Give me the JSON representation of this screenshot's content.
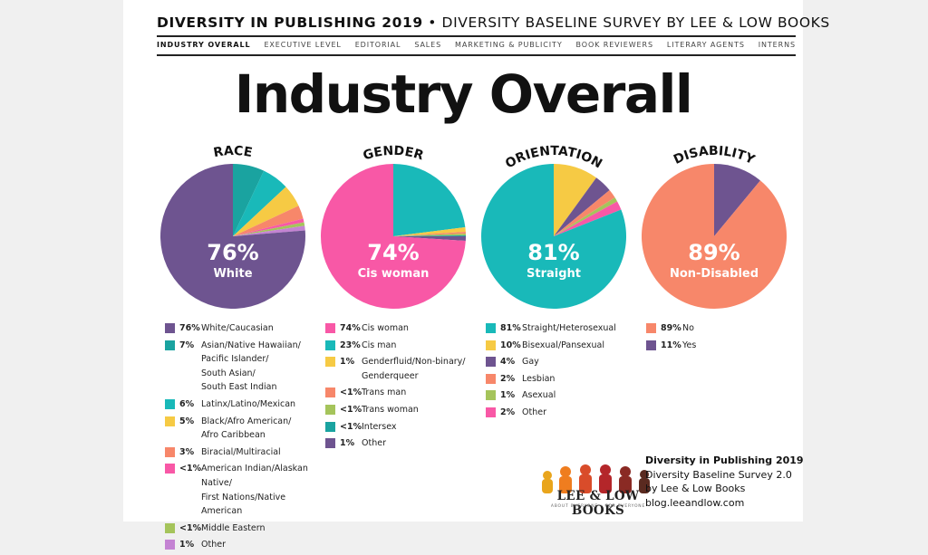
{
  "header": {
    "title_bold": "DIVERSITY IN PUBLISHING 2019",
    "title_rest": " • DIVERSITY BASELINE SURVEY BY LEE & LOW BOOKS"
  },
  "nav": {
    "items": [
      "INDUSTRY OVERALL",
      "EXECUTIVE LEVEL",
      "EDITORIAL",
      "SALES",
      "MARKETING & PUBLICITY",
      "BOOK REVIEWERS",
      "LITERARY AGENTS",
      "INTERNS"
    ],
    "active": 0
  },
  "page_title": "Industry Overall",
  "colors": {
    "purple": "#6e5490",
    "teal_dark": "#1aa3a0",
    "teal": "#19b9b9",
    "yellow": "#f6ca44",
    "salmon": "#f7876a",
    "pink": "#f858a6",
    "green": "#a5c45b",
    "lilac": "#c483d3",
    "cyan": "#1fb3c4"
  },
  "chart_data": [
    {
      "type": "pie",
      "title": "RACE",
      "center_pct": "76%",
      "center_label": "White",
      "slices": [
        {
          "label": "White/Caucasian",
          "value": 76,
          "pct": "76%",
          "color": "#6e5490"
        },
        {
          "label": "Asian/Native Hawaiian/\nPacific Islander/\nSouth Asian/\nSouth East Indian",
          "value": 7,
          "pct": "7%",
          "color": "#1aa3a0"
        },
        {
          "label": "Latinx/Latino/Mexican",
          "value": 6,
          "pct": "6%",
          "color": "#19b9b9"
        },
        {
          "label": "Black/Afro American/\nAfro Caribbean",
          "value": 5,
          "pct": "5%",
          "color": "#f6ca44"
        },
        {
          "label": "Biracial/Multiracial",
          "value": 3,
          "pct": "3%",
          "color": "#f7876a"
        },
        {
          "label": "American Indian/Alaskan Native/\nFirst Nations/Native American",
          "value": 0.8,
          "pct": "<1%",
          "color": "#f858a6"
        },
        {
          "label": "Middle Eastern",
          "value": 0.8,
          "pct": "<1%",
          "color": "#a5c45b"
        },
        {
          "label": "Other",
          "value": 1,
          "pct": "1%",
          "color": "#c483d3"
        }
      ]
    },
    {
      "type": "pie",
      "title": "GENDER",
      "center_pct": "74%",
      "center_label": "Cis woman",
      "slices": [
        {
          "label": "Cis woman",
          "value": 74,
          "pct": "74%",
          "color": "#f858a6"
        },
        {
          "label": "Cis man",
          "value": 23,
          "pct": "23%",
          "color": "#19b9b9"
        },
        {
          "label": "Genderfluid/Non-binary/\nGenderqueer",
          "value": 1,
          "pct": "1%",
          "color": "#f6ca44"
        },
        {
          "label": "Trans man",
          "value": 0.4,
          "pct": "<1%",
          "color": "#f7876a"
        },
        {
          "label": "Trans woman",
          "value": 0.4,
          "pct": "<1%",
          "color": "#a5c45b"
        },
        {
          "label": "Intersex",
          "value": 0.2,
          "pct": "<1%",
          "color": "#1aa3a0"
        },
        {
          "label": "Other",
          "value": 1,
          "pct": "1%",
          "color": "#6e5490"
        }
      ]
    },
    {
      "type": "pie",
      "title": "ORIENTATION",
      "center_pct": "81%",
      "center_label": "Straight",
      "slices": [
        {
          "label": "Straight/Heterosexual",
          "value": 81,
          "pct": "81%",
          "color": "#19b9b9"
        },
        {
          "label": "Bisexual/Pansexual",
          "value": 10,
          "pct": "10%",
          "color": "#f6ca44"
        },
        {
          "label": "Gay",
          "value": 4,
          "pct": "4%",
          "color": "#6e5490"
        },
        {
          "label": "Lesbian",
          "value": 2,
          "pct": "2%",
          "color": "#f7876a"
        },
        {
          "label": "Asexual",
          "value": 1,
          "pct": "1%",
          "color": "#a5c45b"
        },
        {
          "label": "Other",
          "value": 2,
          "pct": "2%",
          "color": "#f858a6"
        }
      ]
    },
    {
      "type": "pie",
      "title": "DISABILITY",
      "center_pct": "89%",
      "center_label": "Non-Disabled",
      "slices": [
        {
          "label": "No",
          "value": 89,
          "pct": "89%",
          "color": "#f7876a"
        },
        {
          "label": "Yes",
          "value": 11,
          "pct": "11%",
          "color": "#6e5490"
        }
      ]
    }
  ],
  "footer": {
    "logo_text": "LEE & LOW BOOKS",
    "logo_tagline": "ABOUT EVERYONE • FOR EVERYONE",
    "credit_line1": "Diversity in Publishing 2019",
    "credit_line2": "Diversity Baseline Survey 2.0",
    "credit_line3": "by Lee & Low Books",
    "credit_line4": "blog.leeandlow.com"
  }
}
